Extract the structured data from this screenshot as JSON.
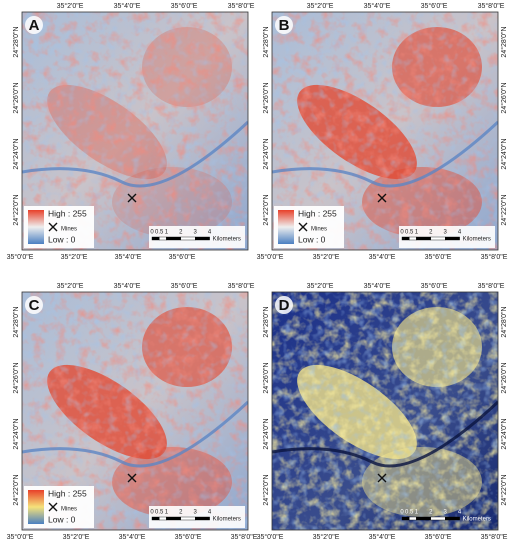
{
  "panels": [
    {
      "label": "A",
      "top_labels": [
        "35°2'0\"E",
        "35°4'0\"E",
        "35°6'0\"E",
        "35°8'0\"E"
      ],
      "left_labels": [
        "24°28'0\"N",
        "24°26'0\"N",
        "24°24'0\"N",
        "24°22'0\"N"
      ],
      "bottom_labels": [
        "35°0'0\"E",
        "35°2'0\"E",
        "35°4'0\"E",
        "35°6'0\"E"
      ],
      "legend": {
        "high": "High : 255",
        "mines": "Mines",
        "low": "Low : 0"
      },
      "scale": {
        "ticks": [
          "0",
          "0.5",
          "1",
          "2",
          "3",
          "4"
        ],
        "unit": "Kilometers"
      }
    },
    {
      "label": "B",
      "top_labels": [
        "35°2'0\"E",
        "35°4'0\"E",
        "35°6'0\"E",
        "35°8'0\"E"
      ],
      "left_labels": [
        "24°28'0\"N",
        "24°26'0\"N",
        "24°24'0\"N",
        "24°22'0\"N"
      ],
      "right_labels": [
        "24°28'0\"N",
        "24°26'0\"N",
        "24°24'0\"N",
        "24°22'0\"N"
      ],
      "bottom_labels": [
        "35°0'0\"E",
        "35°2'0\"E",
        "35°4'0\"E",
        "35°6'0\"E",
        "35°8'0\"E"
      ],
      "legend": {
        "high": "High : 255",
        "mines": "Mines",
        "low": "Low : 0"
      },
      "scale": {
        "ticks": [
          "0",
          "0.5",
          "1",
          "2",
          "3",
          "4"
        ],
        "unit": "Kilometers"
      }
    },
    {
      "label": "C",
      "top_labels": [
        "35°2'0\"E",
        "35°4'0\"E",
        "35°6'0\"E",
        "35°8'0\"E"
      ],
      "left_labels": [
        "24°28'0\"N",
        "24°26'0\"N",
        "24°24'0\"N",
        "24°22'0\"N"
      ],
      "bottom_labels": [
        "35°0'0\"E",
        "35°2'0\"E",
        "35°4'0\"E",
        "35°6'0\"E",
        "35°8'0\"E"
      ],
      "legend": {
        "high": "High : 255",
        "mines": "Mines",
        "low": "Low : 0"
      },
      "scale": {
        "ticks": [
          "0",
          "0.5",
          "1",
          "2",
          "3",
          "4"
        ],
        "unit": "Kilometers"
      }
    },
    {
      "label": "D",
      "top_labels": [
        "35°2'0\"E",
        "35°4'0\"E",
        "35°6'0\"E",
        "35°8'0\"E"
      ],
      "left_labels": [
        "24°28'0\"N",
        "24°26'0\"N",
        "24°24'0\"N",
        "24°22'0\"N"
      ],
      "right_labels": [
        "24°28'0\"N",
        "24°26'0\"N",
        "24°24'0\"N",
        "24°22'0\"N"
      ],
      "bottom_labels": [
        "35°0'0\"E",
        "35°2'0\"E",
        "35°4'0\"E",
        "35°6'0\"E",
        "35°8'0\"E"
      ],
      "scale": {
        "ticks": [
          "0",
          "0.5",
          "1",
          "2",
          "3",
          "4"
        ],
        "unit": "Kilometers"
      }
    }
  ]
}
